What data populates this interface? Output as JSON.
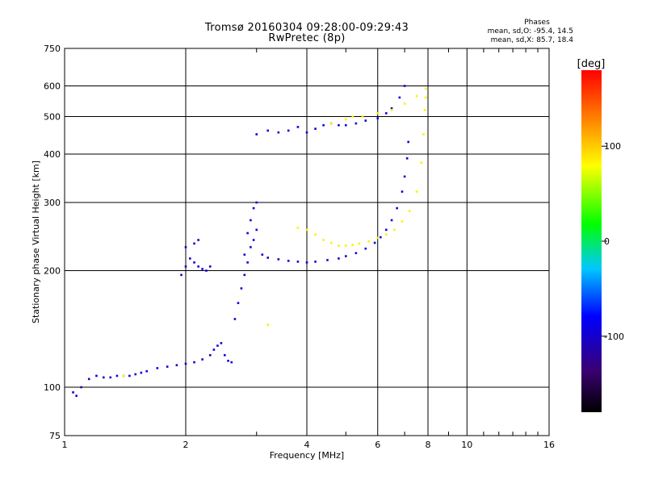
{
  "header": {
    "title": "Tromsø 20160304 09:28:00-09:29:43",
    "subtitle": "RwPretec (8p)"
  },
  "phases": {
    "title": "Phases",
    "line1": "mean, sd,O: -95.4, 14.5",
    "line2": "mean, sd,X:  85.7, 18.4"
  },
  "colorbar": {
    "label": "[deg]",
    "ticks": [
      "100",
      "0",
      "-100"
    ],
    "tick_values": [
      100,
      0,
      -100
    ],
    "range": [
      -180,
      180
    ]
  },
  "chart_data": {
    "type": "scatter",
    "xlabel": "Frequency [MHz]",
    "ylabel": "Stationary phase Virtual Height [km]",
    "x_scale": "log",
    "y_scale": "log",
    "xlim": [
      1,
      16
    ],
    "ylim": [
      75,
      750
    ],
    "x_ticks": [
      1,
      2,
      4,
      6,
      8,
      10,
      16
    ],
    "x_tick_labels": [
      "1",
      "2",
      "4",
      "6",
      "8",
      "10",
      "16"
    ],
    "y_ticks": [
      75,
      100,
      200,
      300,
      400,
      500,
      600,
      750
    ],
    "y_tick_labels": [
      "75",
      "100",
      "200",
      "300",
      "400",
      "500",
      "600",
      "750"
    ],
    "grid": true,
    "series": [
      {
        "name": "O",
        "phase_mean": -95.4,
        "points": [
          [
            1.05,
            97
          ],
          [
            1.07,
            95
          ],
          [
            1.1,
            100
          ],
          [
            1.15,
            105
          ],
          [
            1.2,
            107
          ],
          [
            1.25,
            106
          ],
          [
            1.3,
            106
          ],
          [
            1.35,
            107
          ],
          [
            1.4,
            107
          ],
          [
            1.45,
            107
          ],
          [
            1.5,
            108
          ],
          [
            1.55,
            109
          ],
          [
            1.6,
            110
          ],
          [
            1.7,
            112
          ],
          [
            1.8,
            113
          ],
          [
            1.9,
            114
          ],
          [
            2.0,
            115
          ],
          [
            2.1,
            116
          ],
          [
            2.2,
            118
          ],
          [
            2.3,
            121
          ],
          [
            2.35,
            125
          ],
          [
            2.4,
            128
          ],
          [
            2.45,
            130
          ],
          [
            2.5,
            121
          ],
          [
            2.55,
            117
          ],
          [
            2.6,
            116
          ],
          [
            1.95,
            195
          ],
          [
            2.0,
            205
          ],
          [
            2.05,
            215
          ],
          [
            2.0,
            230
          ],
          [
            2.1,
            235
          ],
          [
            2.15,
            240
          ],
          [
            2.1,
            210
          ],
          [
            2.15,
            205
          ],
          [
            2.2,
            202
          ],
          [
            2.25,
            200
          ],
          [
            2.3,
            205
          ],
          [
            2.65,
            150
          ],
          [
            2.7,
            165
          ],
          [
            2.75,
            180
          ],
          [
            2.8,
            195
          ],
          [
            2.85,
            210
          ],
          [
            2.9,
            230
          ],
          [
            2.85,
            250
          ],
          [
            2.9,
            270
          ],
          [
            2.95,
            290
          ],
          [
            3.0,
            300
          ],
          [
            2.8,
            220
          ],
          [
            2.95,
            240
          ],
          [
            3.0,
            255
          ],
          [
            3.1,
            220
          ],
          [
            3.2,
            216
          ],
          [
            3.4,
            214
          ],
          [
            3.6,
            212
          ],
          [
            3.8,
            211
          ],
          [
            4.0,
            210
          ],
          [
            4.2,
            211
          ],
          [
            4.5,
            213
          ],
          [
            4.8,
            215
          ],
          [
            5.0,
            218
          ],
          [
            5.3,
            222
          ],
          [
            5.6,
            228
          ],
          [
            5.9,
            236
          ],
          [
            6.1,
            244
          ],
          [
            6.3,
            255
          ],
          [
            6.5,
            270
          ],
          [
            6.7,
            290
          ],
          [
            6.9,
            320
          ],
          [
            7.0,
            350
          ],
          [
            7.1,
            390
          ],
          [
            7.15,
            430
          ],
          [
            3.0,
            450
          ],
          [
            3.2,
            460
          ],
          [
            3.4,
            455
          ],
          [
            3.6,
            460
          ],
          [
            3.8,
            470
          ],
          [
            4.0,
            455
          ],
          [
            4.2,
            465
          ],
          [
            4.4,
            475
          ],
          [
            4.6,
            480
          ],
          [
            4.8,
            475
          ],
          [
            5.0,
            475
          ],
          [
            5.3,
            480
          ],
          [
            5.6,
            488
          ],
          [
            6.0,
            495
          ],
          [
            6.3,
            510
          ],
          [
            6.5,
            525
          ],
          [
            6.8,
            560
          ],
          [
            7.0,
            600
          ]
        ]
      },
      {
        "name": "X",
        "phase_mean": 85.7,
        "points": [
          [
            3.8,
            258
          ],
          [
            4.0,
            255
          ],
          [
            4.2,
            248
          ],
          [
            4.4,
            240
          ],
          [
            4.6,
            236
          ],
          [
            4.8,
            232
          ],
          [
            5.0,
            232
          ],
          [
            5.2,
            233
          ],
          [
            5.4,
            235
          ],
          [
            5.7,
            238
          ],
          [
            6.0,
            243
          ],
          [
            6.3,
            248
          ],
          [
            6.6,
            255
          ],
          [
            6.9,
            268
          ],
          [
            7.2,
            285
          ],
          [
            7.5,
            320
          ],
          [
            7.7,
            380
          ],
          [
            7.8,
            450
          ],
          [
            7.85,
            520
          ],
          [
            7.9,
            560
          ],
          [
            4.6,
            480
          ],
          [
            5.0,
            492
          ],
          [
            5.5,
            500
          ],
          [
            6.0,
            510
          ],
          [
            6.5,
            520
          ],
          [
            7.0,
            540
          ],
          [
            7.5,
            565
          ],
          [
            7.9,
            590
          ],
          [
            1.4,
            107
          ],
          [
            3.2,
            145
          ],
          [
            5.2,
            500
          ]
        ]
      }
    ]
  }
}
